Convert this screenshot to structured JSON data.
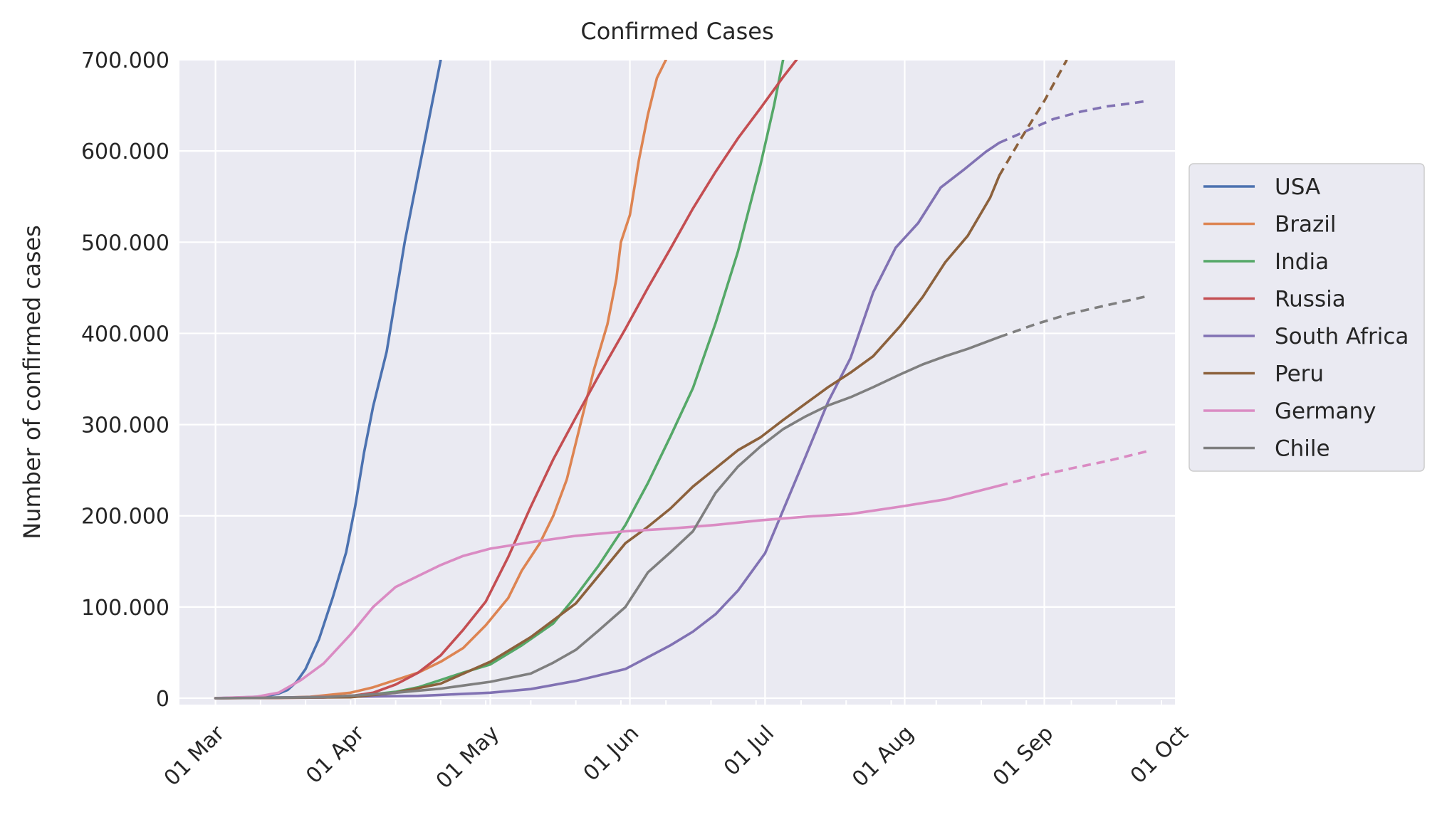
{
  "chart_data": {
    "type": "line",
    "title": "Confirmed Cases",
    "xlabel": "",
    "ylabel": "Number of confirmed cases",
    "xlim": [
      "2020-02-22",
      "2020-09-30"
    ],
    "ylim": [
      -7000,
      700000
    ],
    "x_ticks": [
      {
        "date": "2020-03-01",
        "label": "01 Mar"
      },
      {
        "date": "2020-04-01",
        "label": "01 Apr"
      },
      {
        "date": "2020-05-01",
        "label": "01 May"
      },
      {
        "date": "2020-06-01",
        "label": "01 Jun"
      },
      {
        "date": "2020-07-01",
        "label": "01 Jul"
      },
      {
        "date": "2020-08-01",
        "label": "01 Aug"
      },
      {
        "date": "2020-09-01",
        "label": "01 Sep"
      },
      {
        "date": "2020-10-01",
        "label": "01 Oct"
      }
    ],
    "y_ticks": [
      {
        "value": 0,
        "label": "0"
      },
      {
        "value": 100000,
        "label": "100.000"
      },
      {
        "value": 200000,
        "label": "200.000"
      },
      {
        "value": 300000,
        "label": "300.000"
      },
      {
        "value": 400000,
        "label": "400.000"
      },
      {
        "value": 500000,
        "label": "500.000"
      },
      {
        "value": 600000,
        "label": "600.000"
      },
      {
        "value": 700000,
        "label": "700.000"
      }
    ],
    "grid": true,
    "legend_position": "right",
    "series": [
      {
        "name": "USA",
        "color": "#4c72b0",
        "actual": [
          [
            "2020-03-01",
            0
          ],
          [
            "2020-03-08",
            1000
          ],
          [
            "2020-03-12",
            2000
          ],
          [
            "2020-03-15",
            5000
          ],
          [
            "2020-03-17",
            9000
          ],
          [
            "2020-03-19",
            18000
          ],
          [
            "2020-03-21",
            32000
          ],
          [
            "2020-03-24",
            65000
          ],
          [
            "2020-03-27",
            110000
          ],
          [
            "2020-03-30",
            160000
          ],
          [
            "2020-04-01",
            210000
          ],
          [
            "2020-04-03",
            270000
          ],
          [
            "2020-04-05",
            320000
          ],
          [
            "2020-04-08",
            380000
          ],
          [
            "2020-04-10",
            440000
          ],
          [
            "2020-04-12",
            500000
          ],
          [
            "2020-04-14",
            550000
          ],
          [
            "2020-04-16",
            600000
          ],
          [
            "2020-04-18",
            650000
          ],
          [
            "2020-04-20",
            700000
          ]
        ]
      },
      {
        "name": "Brazil",
        "color": "#dd8452",
        "actual": [
          [
            "2020-03-01",
            0
          ],
          [
            "2020-03-15",
            500
          ],
          [
            "2020-03-22",
            1500
          ],
          [
            "2020-03-25",
            3000
          ],
          [
            "2020-03-31",
            6000
          ],
          [
            "2020-04-05",
            12000
          ],
          [
            "2020-04-10",
            20000
          ],
          [
            "2020-04-15",
            28000
          ],
          [
            "2020-04-20",
            40000
          ],
          [
            "2020-04-25",
            55000
          ],
          [
            "2020-04-30",
            80000
          ],
          [
            "2020-05-05",
            110000
          ],
          [
            "2020-05-08",
            140000
          ],
          [
            "2020-05-12",
            170000
          ],
          [
            "2020-05-15",
            200000
          ],
          [
            "2020-05-18",
            240000
          ],
          [
            "2020-05-21",
            300000
          ],
          [
            "2020-05-24",
            360000
          ],
          [
            "2020-05-27",
            410000
          ],
          [
            "2020-05-29",
            460000
          ],
          [
            "2020-05-30",
            500000
          ],
          [
            "2020-06-01",
            530000
          ],
          [
            "2020-06-03",
            590000
          ],
          [
            "2020-06-05",
            640000
          ],
          [
            "2020-06-07",
            680000
          ],
          [
            "2020-06-09",
            700000
          ]
        ]
      },
      {
        "name": "India",
        "color": "#55a868",
        "actual": [
          [
            "2020-03-01",
            0
          ],
          [
            "2020-03-31",
            1500
          ],
          [
            "2020-04-10",
            7000
          ],
          [
            "2020-04-15",
            12000
          ],
          [
            "2020-04-20",
            20000
          ],
          [
            "2020-04-25",
            28000
          ],
          [
            "2020-05-01",
            37000
          ],
          [
            "2020-05-08",
            58000
          ],
          [
            "2020-05-15",
            82000
          ],
          [
            "2020-05-20",
            112000
          ],
          [
            "2020-05-25",
            145000
          ],
          [
            "2020-05-31",
            190000
          ],
          [
            "2020-06-05",
            236000
          ],
          [
            "2020-06-10",
            287000
          ],
          [
            "2020-06-15",
            340000
          ],
          [
            "2020-06-20",
            411000
          ],
          [
            "2020-06-25",
            490000
          ],
          [
            "2020-06-30",
            585000
          ],
          [
            "2020-07-03",
            650000
          ],
          [
            "2020-07-05",
            700000
          ]
        ]
      },
      {
        "name": "Russia",
        "color": "#c44e52",
        "actual": [
          [
            "2020-03-01",
            0
          ],
          [
            "2020-03-25",
            700
          ],
          [
            "2020-04-01",
            3000
          ],
          [
            "2020-04-05",
            6000
          ],
          [
            "2020-04-10",
            15000
          ],
          [
            "2020-04-15",
            28000
          ],
          [
            "2020-04-20",
            47000
          ],
          [
            "2020-04-25",
            75000
          ],
          [
            "2020-04-30",
            106000
          ],
          [
            "2020-05-05",
            155000
          ],
          [
            "2020-05-10",
            210000
          ],
          [
            "2020-05-15",
            262000
          ],
          [
            "2020-05-20",
            308000
          ],
          [
            "2020-05-25",
            353000
          ],
          [
            "2020-05-31",
            405000
          ],
          [
            "2020-06-05",
            450000
          ],
          [
            "2020-06-10",
            493000
          ],
          [
            "2020-06-15",
            537000
          ],
          [
            "2020-06-20",
            577000
          ],
          [
            "2020-06-25",
            614000
          ],
          [
            "2020-06-30",
            647000
          ],
          [
            "2020-07-05",
            681000
          ],
          [
            "2020-07-08",
            700000
          ]
        ]
      },
      {
        "name": "South Africa",
        "color": "#8172b3",
        "actual": [
          [
            "2020-03-01",
            0
          ],
          [
            "2020-04-15",
            2500
          ],
          [
            "2020-05-01",
            6000
          ],
          [
            "2020-05-10",
            10000
          ],
          [
            "2020-05-20",
            19000
          ],
          [
            "2020-05-31",
            32000
          ],
          [
            "2020-06-05",
            45000
          ],
          [
            "2020-06-10",
            58000
          ],
          [
            "2020-06-15",
            73000
          ],
          [
            "2020-06-20",
            92000
          ],
          [
            "2020-06-25",
            118000
          ],
          [
            "2020-07-01",
            159000
          ],
          [
            "2020-07-05",
            206000
          ],
          [
            "2020-07-10",
            265000
          ],
          [
            "2020-07-15",
            325000
          ],
          [
            "2020-07-20",
            373000
          ],
          [
            "2020-07-25",
            445000
          ],
          [
            "2020-07-30",
            494000
          ],
          [
            "2020-08-04",
            521000
          ],
          [
            "2020-08-09",
            560000
          ],
          [
            "2020-08-14",
            579000
          ],
          [
            "2020-08-19",
            599000
          ],
          [
            "2020-08-22",
            609000
          ]
        ],
        "forecast": [
          [
            "2020-08-22",
            609000
          ],
          [
            "2020-08-28",
            622000
          ],
          [
            "2020-09-03",
            635000
          ],
          [
            "2020-09-09",
            643000
          ],
          [
            "2020-09-15",
            649000
          ],
          [
            "2020-09-20",
            652000
          ],
          [
            "2020-09-24",
            655000
          ]
        ]
      },
      {
        "name": "Peru",
        "color": "#8c613c",
        "actual": [
          [
            "2020-03-01",
            0
          ],
          [
            "2020-03-31",
            1000
          ],
          [
            "2020-04-10",
            6000
          ],
          [
            "2020-04-20",
            16000
          ],
          [
            "2020-05-01",
            40000
          ],
          [
            "2020-05-10",
            67000
          ],
          [
            "2020-05-20",
            104000
          ],
          [
            "2020-05-31",
            170000
          ],
          [
            "2020-06-05",
            188000
          ],
          [
            "2020-06-10",
            208000
          ],
          [
            "2020-06-15",
            232000
          ],
          [
            "2020-06-20",
            252000
          ],
          [
            "2020-06-25",
            272000
          ],
          [
            "2020-06-30",
            286000
          ],
          [
            "2020-07-05",
            305000
          ],
          [
            "2020-07-10",
            323000
          ],
          [
            "2020-07-15",
            341000
          ],
          [
            "2020-07-20",
            357000
          ],
          [
            "2020-07-25",
            375000
          ],
          [
            "2020-07-31",
            408000
          ],
          [
            "2020-08-05",
            440000
          ],
          [
            "2020-08-10",
            478000
          ],
          [
            "2020-08-15",
            507000
          ],
          [
            "2020-08-20",
            549000
          ],
          [
            "2020-08-22",
            573000
          ]
        ],
        "forecast": [
          [
            "2020-08-22",
            573000
          ],
          [
            "2020-08-27",
            615000
          ],
          [
            "2020-09-01",
            655000
          ],
          [
            "2020-09-06",
            700000
          ]
        ]
      },
      {
        "name": "Germany",
        "color": "#da8bc3",
        "actual": [
          [
            "2020-03-01",
            100
          ],
          [
            "2020-03-10",
            1500
          ],
          [
            "2020-03-15",
            6000
          ],
          [
            "2020-03-20",
            20000
          ],
          [
            "2020-03-25",
            38000
          ],
          [
            "2020-03-31",
            70000
          ],
          [
            "2020-04-05",
            100000
          ],
          [
            "2020-04-10",
            122000
          ],
          [
            "2020-04-15",
            134000
          ],
          [
            "2020-04-20",
            146000
          ],
          [
            "2020-04-25",
            156000
          ],
          [
            "2020-05-01",
            164000
          ],
          [
            "2020-05-10",
            171000
          ],
          [
            "2020-05-20",
            178000
          ],
          [
            "2020-05-31",
            183000
          ],
          [
            "2020-06-10",
            186000
          ],
          [
            "2020-06-20",
            190000
          ],
          [
            "2020-06-30",
            195000
          ],
          [
            "2020-07-10",
            199000
          ],
          [
            "2020-07-20",
            202000
          ],
          [
            "2020-07-31",
            210000
          ],
          [
            "2020-08-10",
            218000
          ],
          [
            "2020-08-22",
            233000
          ]
        ],
        "forecast": [
          [
            "2020-08-22",
            233000
          ],
          [
            "2020-08-30",
            243000
          ],
          [
            "2020-09-07",
            252000
          ],
          [
            "2020-09-15",
            260000
          ],
          [
            "2020-09-24",
            271000
          ]
        ]
      },
      {
        "name": "Chile",
        "color": "#7f7f7f",
        "actual": [
          [
            "2020-03-01",
            0
          ],
          [
            "2020-03-25",
            1000
          ],
          [
            "2020-04-01",
            3000
          ],
          [
            "2020-04-10",
            6000
          ],
          [
            "2020-04-20",
            10500
          ],
          [
            "2020-05-01",
            18000
          ],
          [
            "2020-05-10",
            27000
          ],
          [
            "2020-05-15",
            39000
          ],
          [
            "2020-05-20",
            53000
          ],
          [
            "2020-05-25",
            74000
          ],
          [
            "2020-05-28",
            87000
          ],
          [
            "2020-05-31",
            100000
          ],
          [
            "2020-06-05",
            138000
          ],
          [
            "2020-06-10",
            160000
          ],
          [
            "2020-06-15",
            183000
          ],
          [
            "2020-06-20",
            225000
          ],
          [
            "2020-06-25",
            254000
          ],
          [
            "2020-06-30",
            276000
          ],
          [
            "2020-07-05",
            295000
          ],
          [
            "2020-07-10",
            309000
          ],
          [
            "2020-07-15",
            321000
          ],
          [
            "2020-07-20",
            330000
          ],
          [
            "2020-07-25",
            341000
          ],
          [
            "2020-07-31",
            355000
          ],
          [
            "2020-08-05",
            366000
          ],
          [
            "2020-08-10",
            375000
          ],
          [
            "2020-08-15",
            383000
          ],
          [
            "2020-08-22",
            396000
          ]
        ],
        "forecast": [
          [
            "2020-08-22",
            396000
          ],
          [
            "2020-08-30",
            410000
          ],
          [
            "2020-09-07",
            422000
          ],
          [
            "2020-09-15",
            431000
          ],
          [
            "2020-09-24",
            441000
          ]
        ]
      }
    ],
    "colors": {
      "plot_background": "#eaeaf2",
      "grid": "#ffffff",
      "text": "#262626"
    }
  }
}
